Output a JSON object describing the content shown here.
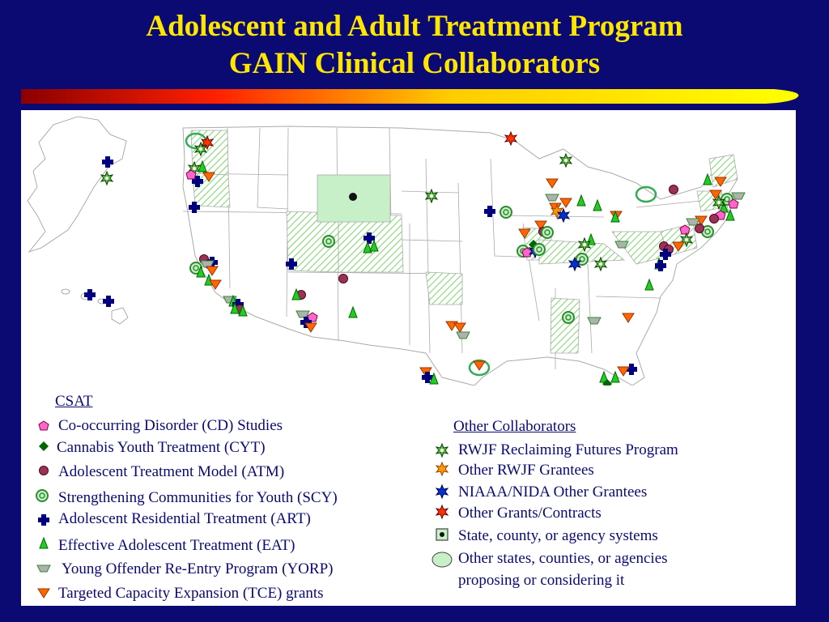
{
  "title_line1": "Adolescent and Adult Treatment Program",
  "title_line2": "GAIN Clinical Collaborators",
  "colors": {
    "background": "#0a0a72",
    "title": "#ffe600",
    "rule_start": "#8b0000",
    "rule_end": "#ffff00",
    "hatch": "#7bd56b"
  },
  "csat_heading": "CSAT",
  "csat_legend": [
    {
      "label": "Co-occurring Disorder (CD) Studies",
      "icon": "pink-pentagon-icon"
    },
    {
      "label": "Cannabis Youth Treatment (CYT)",
      "icon": "green-diamond-icon"
    },
    {
      "label": "Adolescent Treatment Model (ATM)",
      "icon": "maroon-circle-icon"
    },
    {
      "label": "Strengthening Communities for Youth (SCY)",
      "icon": "green-ring-icon"
    },
    {
      "label": "Adolescent Residential Treatment  (ART)",
      "icon": "navy-cross-icon"
    },
    {
      "label": "Effective Adolescent Treatment  (EAT)",
      "icon": "green-triangle-icon"
    },
    {
      "label": "Young Offender Re-Entry Program (YORP)",
      "icon": "gray-trapezoid-icon"
    },
    {
      "label": "Targeted Capacity Expansion (TCE) grants",
      "icon": "orange-triangle-down-icon"
    }
  ],
  "other_heading": "Other Collaborators",
  "other_legend": [
    {
      "label": "RWJF Reclaiming Futures Program",
      "icon": "green-star-icon"
    },
    {
      "label": "Other RWJF Grantees",
      "icon": "orange-star-icon"
    },
    {
      "label": "NIAAA/NIDA Other Grantees",
      "icon": "blue-star-icon"
    },
    {
      "label": "Other Grants/Contracts",
      "icon": "red-star-icon"
    },
    {
      "label": "State, county, or agency systems",
      "icon": "boxed-dot-icon"
    },
    {
      "label": "Other states, counties, or agencies",
      "icon": "light-green-oval-icon"
    },
    {
      "label": "proposing or considering it",
      "icon": ""
    }
  ]
}
